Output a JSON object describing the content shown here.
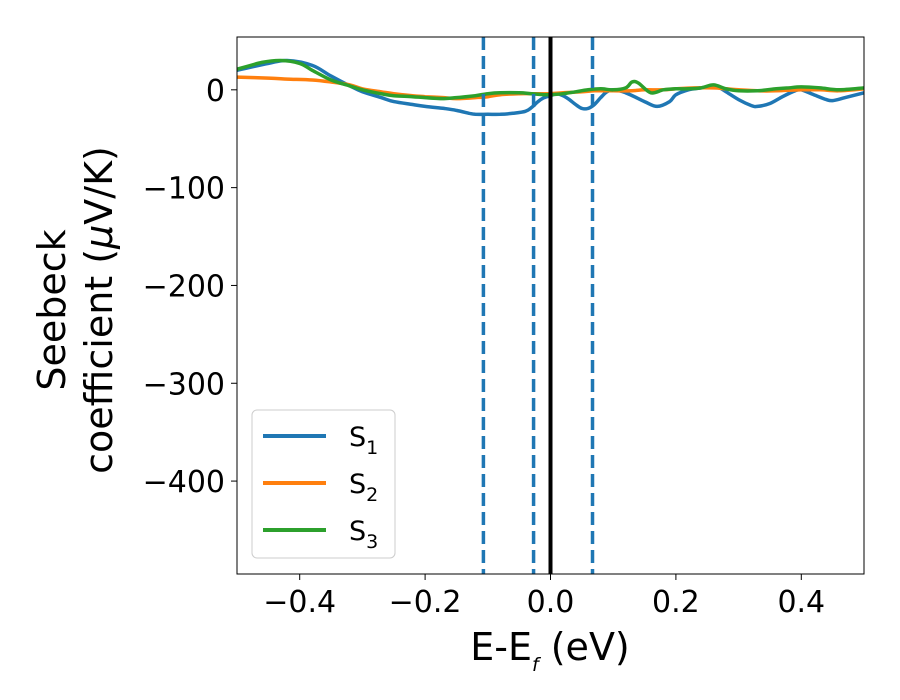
{
  "chart_data": {
    "type": "line",
    "xlabel": {
      "main": "E-E",
      "sub": "f",
      "unit": " (eV)"
    },
    "ylabel": {
      "line1": "Seebeck",
      "line2": "coefficient  (",
      "mu": "μ",
      "line2_end": "V/K)"
    },
    "xlim": [
      -0.5,
      0.5
    ],
    "ylim": [
      -495,
      54
    ],
    "xticks": [
      -0.4,
      -0.2,
      0.0,
      0.2,
      0.4
    ],
    "xtick_labels": [
      "−0.4",
      "−0.2",
      "0.0",
      "0.2",
      "0.4"
    ],
    "yticks": [
      0,
      -100,
      -200,
      -300,
      -400
    ],
    "ytick_labels": [
      "0",
      "−100",
      "−200",
      "−300",
      "−400"
    ],
    "vlines_dashed": [
      -0.107,
      -0.027,
      0.067
    ],
    "vline_solid": 0.0,
    "legend_position": "lower-left",
    "series": [
      {
        "name_main": "S",
        "name_sub": "1",
        "color": "#1f77b4",
        "x": [
          -0.5,
          -0.45,
          -0.42,
          -0.38,
          -0.35,
          -0.32,
          -0.3,
          -0.27,
          -0.25,
          -0.22,
          -0.2,
          -0.17,
          -0.15,
          -0.13,
          -0.12,
          -0.1,
          -0.08,
          -0.06,
          -0.04,
          -0.03,
          -0.02,
          -0.01,
          0.0,
          0.01,
          0.02,
          0.03,
          0.04,
          0.05,
          0.06,
          0.07,
          0.08,
          0.09,
          0.1,
          0.12,
          0.15,
          0.17,
          0.19,
          0.2,
          0.22,
          0.24,
          0.26,
          0.27,
          0.28,
          0.3,
          0.32,
          0.33,
          0.35,
          0.37,
          0.39,
          0.4,
          0.42,
          0.44,
          0.45,
          0.47,
          0.5
        ],
        "y": [
          20,
          27,
          30,
          25,
          14,
          4,
          -2,
          -8,
          -12,
          -15,
          -17,
          -19,
          -21,
          -24,
          -25,
          -25,
          -25,
          -24,
          -22,
          -18,
          -12,
          -8,
          -6,
          -4,
          -6,
          -10,
          -15,
          -19,
          -19,
          -15,
          -8,
          -2,
          0,
          -3,
          -12,
          -17,
          -12,
          -5,
          0,
          2,
          4,
          2,
          -2,
          -10,
          -16,
          -17,
          -14,
          -7,
          -1,
          0,
          -5,
          -10,
          -11,
          -8,
          -3
        ]
      },
      {
        "name_main": "S",
        "name_sub": "2",
        "color": "#ff7f0e",
        "x": [
          -0.5,
          -0.45,
          -0.42,
          -0.38,
          -0.35,
          -0.32,
          -0.3,
          -0.27,
          -0.25,
          -0.22,
          -0.2,
          -0.17,
          -0.15,
          -0.12,
          -0.1,
          -0.08,
          -0.05,
          -0.03,
          -0.01,
          0.0,
          0.02,
          0.05,
          0.07,
          0.1,
          0.13,
          0.15,
          0.18,
          0.2,
          0.23,
          0.26,
          0.28,
          0.3,
          0.33,
          0.36,
          0.4,
          0.43,
          0.46,
          0.5
        ],
        "y": [
          13,
          12,
          11,
          10,
          8,
          5,
          1,
          -2,
          -4,
          -6,
          -7,
          -8,
          -9,
          -8,
          -7,
          -5,
          -4,
          -4,
          -4,
          -4,
          -3,
          -2,
          -1,
          -1,
          -1,
          0,
          0,
          1,
          2,
          2,
          1,
          0,
          -1,
          -1,
          0,
          0,
          -1,
          1
        ]
      },
      {
        "name_main": "S",
        "name_sub": "3",
        "color": "#2ca02c",
        "x": [
          -0.5,
          -0.46,
          -0.43,
          -0.4,
          -0.38,
          -0.35,
          -0.32,
          -0.3,
          -0.27,
          -0.25,
          -0.22,
          -0.2,
          -0.17,
          -0.15,
          -0.12,
          -0.1,
          -0.08,
          -0.05,
          -0.03,
          -0.01,
          0.0,
          0.02,
          0.04,
          0.06,
          0.08,
          0.1,
          0.12,
          0.13,
          0.14,
          0.16,
          0.18,
          0.2,
          0.22,
          0.24,
          0.26,
          0.28,
          0.3,
          0.33,
          0.36,
          0.38,
          0.4,
          0.43,
          0.46,
          0.5
        ],
        "y": [
          21,
          28,
          30,
          27,
          20,
          10,
          4,
          0,
          -4,
          -6,
          -7,
          -8,
          -9,
          -8,
          -6,
          -4,
          -3,
          -3,
          -4,
          -5,
          -5,
          -4,
          -2,
          0,
          1,
          0,
          2,
          8,
          7,
          -3,
          0,
          1,
          1,
          2,
          5,
          1,
          -1,
          -1,
          1,
          2,
          3,
          2,
          0,
          2
        ]
      }
    ]
  }
}
